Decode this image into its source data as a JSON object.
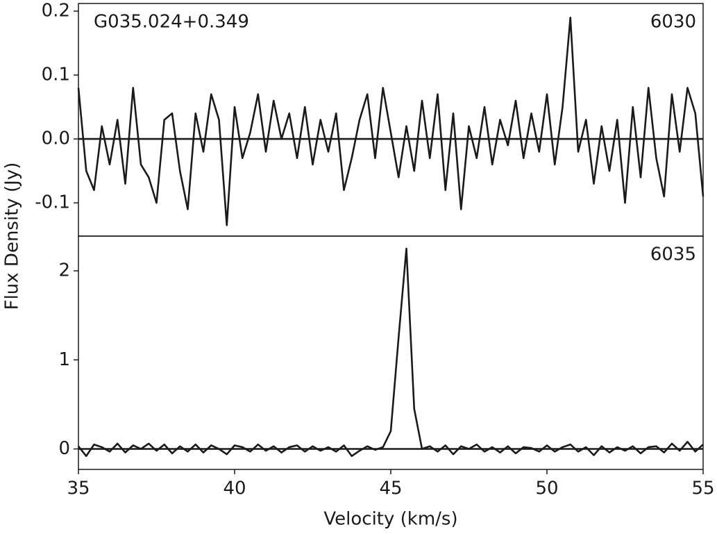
{
  "chart_data": [
    {
      "type": "line",
      "title": "G035.024+0.349",
      "label": "6030",
      "ylabel": "Flux Density (Jy)",
      "color": "#1a1a1a",
      "xlim": [
        35,
        55
      ],
      "ylim": [
        -0.152,
        0.212
      ],
      "yticks": [
        -0.1,
        {
          "value": 0,
          "label": "0.0"
        },
        0.1,
        0.2
      ],
      "hline": 0,
      "x": [
        35,
        35.25,
        35.5,
        35.75,
        36,
        36.25,
        36.5,
        36.75,
        37,
        37.25,
        37.5,
        37.75,
        38,
        38.25,
        38.5,
        38.75,
        39,
        39.25,
        39.5,
        39.75,
        40,
        40.25,
        40.5,
        40.75,
        41,
        41.25,
        41.5,
        41.75,
        42,
        42.25,
        42.5,
        42.75,
        43,
        43.25,
        43.5,
        43.75,
        44,
        44.25,
        44.5,
        44.75,
        45,
        45.25,
        45.5,
        45.75,
        46,
        46.25,
        46.5,
        46.75,
        47,
        47.25,
        47.5,
        47.75,
        48,
        48.25,
        48.5,
        48.75,
        49,
        49.25,
        49.5,
        49.75,
        50,
        50.25,
        50.5,
        50.75,
        51,
        51.25,
        51.5,
        51.75,
        52,
        52.25,
        52.5,
        52.75,
        53,
        53.25,
        53.5,
        53.75,
        54,
        54.25,
        54.5,
        54.75,
        55
      ],
      "values": [
        0.08,
        -0.05,
        -0.08,
        0.02,
        -0.04,
        0.03,
        -0.07,
        0.08,
        -0.04,
        -0.06,
        -0.1,
        0.03,
        0.04,
        -0.05,
        -0.11,
        0.04,
        -0.02,
        0.07,
        0.03,
        -0.135,
        0.05,
        -0.03,
        0.01,
        0.07,
        -0.02,
        0.06,
        0.0,
        0.04,
        -0.03,
        0.05,
        -0.04,
        0.03,
        -0.02,
        0.04,
        -0.08,
        -0.03,
        0.03,
        0.07,
        -0.03,
        0.08,
        0.01,
        -0.06,
        0.02,
        -0.05,
        0.06,
        -0.03,
        0.07,
        -0.08,
        0.04,
        -0.11,
        0.02,
        -0.03,
        0.05,
        -0.04,
        0.03,
        -0.01,
        0.06,
        -0.03,
        0.04,
        -0.02,
        0.07,
        -0.04,
        0.05,
        0.19,
        -0.02,
        0.03,
        -0.07,
        0.02,
        -0.05,
        0.03,
        -0.1,
        0.05,
        -0.06,
        0.08,
        -0.03,
        -0.09,
        0.07,
        -0.02,
        0.08,
        0.04,
        -0.09
      ]
    },
    {
      "type": "line",
      "label": "6035",
      "xlabel": "Velocity (km/s)",
      "color": "#1a1a1a",
      "xlim": [
        35,
        55
      ],
      "ylim": [
        -0.23,
        2.39
      ],
      "xticks": [
        35,
        40,
        45,
        50,
        55
      ],
      "yticks": [
        0,
        1,
        2
      ],
      "hline": 0,
      "x": [
        35,
        35.25,
        35.5,
        35.75,
        36,
        36.25,
        36.5,
        36.75,
        37,
        37.25,
        37.5,
        37.75,
        38,
        38.25,
        38.5,
        38.75,
        39,
        39.25,
        39.5,
        39.75,
        40,
        40.25,
        40.5,
        40.75,
        41,
        41.25,
        41.5,
        41.75,
        42,
        42.25,
        42.5,
        42.75,
        43,
        43.25,
        43.5,
        43.75,
        44,
        44.25,
        44.5,
        44.75,
        45,
        45.25,
        45.5,
        45.75,
        46,
        46.25,
        46.5,
        46.75,
        47,
        47.25,
        47.5,
        47.75,
        48,
        48.25,
        48.5,
        48.75,
        49,
        49.25,
        49.5,
        49.75,
        50,
        50.25,
        50.5,
        50.75,
        51,
        51.25,
        51.5,
        51.75,
        52,
        52.25,
        52.5,
        52.75,
        53,
        53.25,
        53.5,
        53.75,
        54,
        54.25,
        54.5,
        54.75,
        55
      ],
      "values": [
        0.03,
        -0.08,
        0.05,
        0.02,
        -0.03,
        0.06,
        -0.04,
        0.04,
        0.0,
        0.06,
        -0.02,
        0.05,
        -0.05,
        0.03,
        -0.03,
        0.05,
        -0.04,
        0.04,
        0.0,
        -0.06,
        0.04,
        0.02,
        -0.03,
        0.05,
        -0.02,
        0.03,
        -0.04,
        0.02,
        0.04,
        -0.03,
        0.03,
        -0.02,
        0.02,
        -0.03,
        0.04,
        -0.08,
        -0.02,
        0.03,
        -0.01,
        0.02,
        0.2,
        1.25,
        2.25,
        0.45,
        0.0,
        0.03,
        -0.03,
        0.04,
        -0.06,
        0.03,
        0.0,
        0.05,
        -0.03,
        0.02,
        -0.04,
        0.03,
        -0.05,
        0.02,
        0.01,
        -0.03,
        0.04,
        -0.03,
        0.02,
        0.05,
        -0.03,
        0.02,
        -0.07,
        0.03,
        -0.04,
        0.02,
        -0.02,
        0.03,
        -0.05,
        0.02,
        0.03,
        -0.04,
        0.06,
        -0.02,
        0.08,
        -0.03,
        0.05
      ]
    }
  ]
}
